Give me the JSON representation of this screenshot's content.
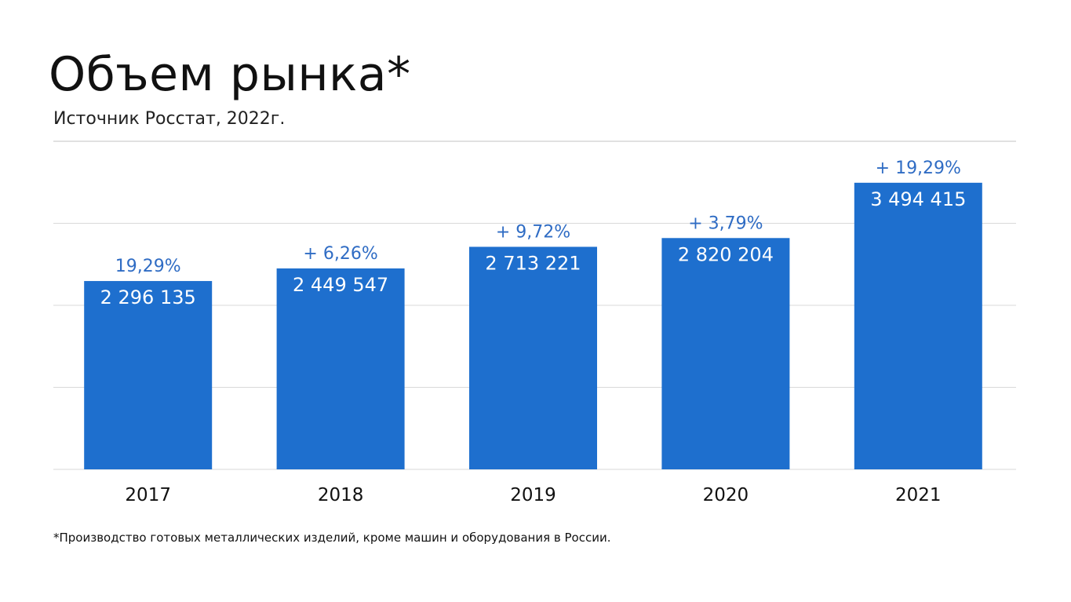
{
  "header": {
    "title": "Объем рынка*",
    "subtitle": "Источник Росстат, 2022г."
  },
  "footnote": "*Производство готовых металлических изделий, кроме машин и оборудования в России.",
  "colors": {
    "bar": "#1e6fce",
    "percent_label": "#2f6cc4",
    "value_label": "#ffffff"
  },
  "chart_data": {
    "type": "bar",
    "categories": [
      "2017",
      "2018",
      "2019",
      "2020",
      "2021"
    ],
    "values": [
      2296135,
      2449547,
      2713221,
      2820204,
      3494415
    ],
    "value_labels": [
      "2 296 135",
      "2 449 547",
      "2 713 221",
      "2 820 204",
      "3 494 415"
    ],
    "growth_labels": [
      "19,29%",
      "+ 6,26%",
      "+ 9,72%",
      "+ 3,79%",
      "+ 19,29%"
    ],
    "title": "",
    "xlabel": "",
    "ylabel": "",
    "ylim": [
      0,
      4000000
    ],
    "grid": true,
    "legend": "none"
  }
}
